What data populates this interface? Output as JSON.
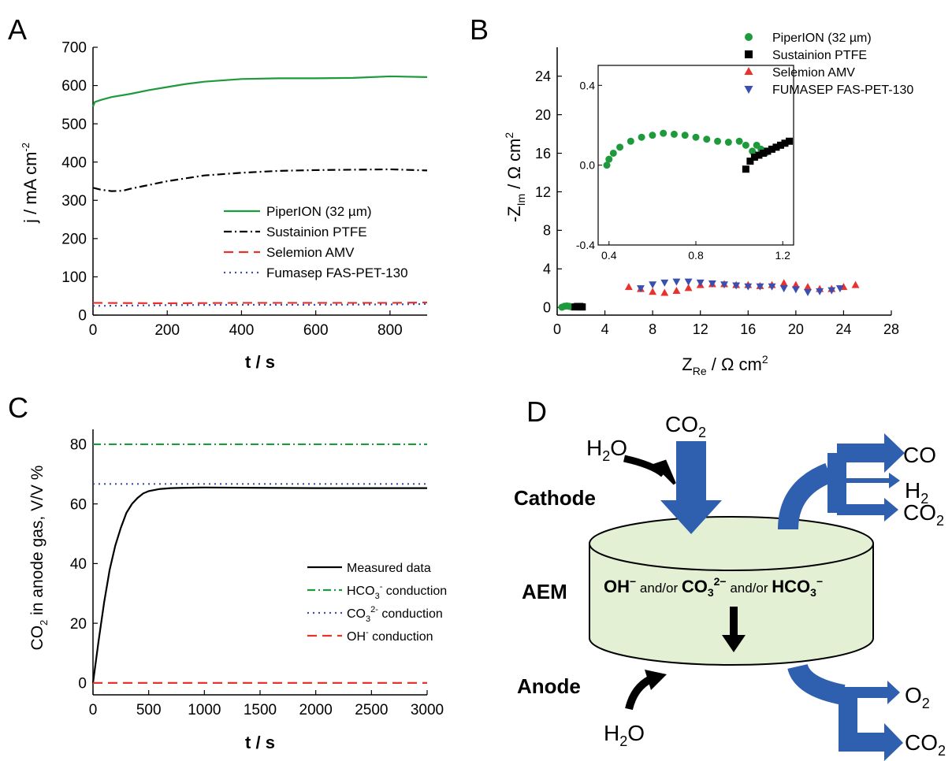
{
  "panels": {
    "A": {
      "letter": "A"
    },
    "B": {
      "letter": "B"
    },
    "C": {
      "letter": "C"
    },
    "D": {
      "letter": "D"
    }
  },
  "colors": {
    "green": "#1e9a3c",
    "black": "#000000",
    "red": "#e8322d",
    "blue": "#3a4fb0",
    "arrow": "#2f5faf",
    "disc": "#e3f0d4"
  },
  "chart_data": [
    {
      "id": "A",
      "type": "line",
      "ylabel_main": "j / mA cm",
      "ylabel_sup": "-2",
      "xlabel": "t / s",
      "xlim": [
        0,
        900
      ],
      "ylim": [
        0,
        700
      ],
      "xticks": [
        0,
        200,
        400,
        600,
        800
      ],
      "yticks": [
        0,
        100,
        200,
        300,
        400,
        500,
        600,
        700
      ],
      "legend_position": "right",
      "series": [
        {
          "name": "PiperION (32 µm)",
          "style": "solid",
          "color": "#1e9a3c",
          "x": [
            0,
            5,
            20,
            50,
            100,
            150,
            200,
            250,
            300,
            400,
            500,
            600,
            700,
            800,
            900
          ],
          "y": [
            545,
            557,
            562,
            570,
            578,
            588,
            596,
            604,
            610,
            617,
            619,
            619,
            620,
            624,
            622
          ]
        },
        {
          "name": "Sustainion PTFE",
          "style": "dashdot",
          "color": "#000000",
          "x": [
            0,
            20,
            50,
            80,
            100,
            150,
            200,
            300,
            400,
            500,
            600,
            700,
            800,
            900
          ],
          "y": [
            333,
            328,
            324,
            325,
            330,
            340,
            350,
            365,
            372,
            377,
            379,
            380,
            381,
            378
          ]
        },
        {
          "name": "Selemion AMV",
          "style": "dashed",
          "color": "#e8322d",
          "x": [
            0,
            200,
            400,
            600,
            800,
            900
          ],
          "y": [
            32,
            31,
            32,
            32,
            32,
            33
          ]
        },
        {
          "name": "Fumasep FAS-PET-130",
          "style": "dotted",
          "color": "#3a4fb0",
          "x": [
            0,
            200,
            400,
            600,
            800,
            900
          ],
          "y": [
            24,
            26,
            27,
            27,
            28,
            29
          ]
        }
      ]
    },
    {
      "id": "B",
      "type": "scatter",
      "ylabel_main": "-Z",
      "ylabel_sub": "Im",
      "ylabel_rest": " / Ω cm",
      "ylabel_sup": "2",
      "xlabel_main": "Z",
      "xlabel_sub": "Re",
      "xlabel_rest": " / Ω cm",
      "xlabel_sup": "2",
      "xlim": [
        0,
        28
      ],
      "ylim": [
        -0.8,
        27
      ],
      "xticks": [
        0,
        4,
        8,
        12,
        16,
        20,
        24,
        28
      ],
      "yticks": [
        0,
        4,
        8,
        12,
        16,
        20,
        24
      ],
      "legend_position": "top-right",
      "series": [
        {
          "name": "PiperION (32 µm)",
          "marker": "hexagon",
          "color": "#1e9a3c",
          "x": [
            0.4,
            0.6,
            0.8,
            1.0,
            1.2
          ],
          "y": [
            0.02,
            0.12,
            0.15,
            0.12,
            0.05
          ]
        },
        {
          "name": "Sustainion PTFE",
          "marker": "square",
          "color": "#000000",
          "x": [
            1.5,
            1.7,
            1.9,
            2.0,
            2.1
          ],
          "y": [
            0.05,
            0.1,
            0.1,
            0.05,
            0.05
          ]
        },
        {
          "name": "Selemion AMV",
          "marker": "triangle-up",
          "color": "#e8322d",
          "x": [
            6,
            7,
            8,
            9,
            10,
            11,
            12,
            13,
            14,
            15,
            16,
            17,
            18,
            19,
            20,
            21,
            22,
            23,
            24,
            25
          ],
          "y": [
            2.1,
            1.9,
            1.6,
            1.5,
            1.7,
            2.0,
            2.3,
            2.4,
            2.4,
            2.3,
            2.3,
            2.2,
            2.3,
            2.5,
            2.3,
            2.1,
            1.9,
            1.9,
            2.1,
            2.3
          ]
        },
        {
          "name": "FUMASEP FAS-PET-130",
          "marker": "triangle-down",
          "color": "#3a4fb0",
          "x": [
            7,
            8,
            9,
            10,
            11,
            12,
            13,
            14,
            15,
            16,
            17,
            18,
            19,
            20,
            21,
            22,
            23,
            23.7
          ],
          "y": [
            2.0,
            2.4,
            2.6,
            2.7,
            2.7,
            2.6,
            2.5,
            2.4,
            2.3,
            2.2,
            2.2,
            2.2,
            2.0,
            1.9,
            1.6,
            1.7,
            1.8,
            2.0
          ]
        }
      ],
      "inset": {
        "xlim": [
          0.35,
          1.25
        ],
        "ylim": [
          -0.4,
          0.5
        ],
        "xticks": [
          0.4,
          0.8,
          1.2
        ],
        "yticks": [
          -0.4,
          0.0,
          0.4
        ],
        "series": [
          {
            "name": "PiperION (32 µm)",
            "marker": "hexagon",
            "color": "#1e9a3c",
            "x": [
              0.39,
              0.4,
              0.42,
              0.45,
              0.5,
              0.55,
              0.6,
              0.65,
              0.7,
              0.75,
              0.8,
              0.85,
              0.9,
              0.95,
              1.0,
              1.03,
              1.06,
              1.08,
              1.1,
              1.12
            ],
            "y": [
              0.0,
              0.03,
              0.06,
              0.09,
              0.12,
              0.14,
              0.15,
              0.16,
              0.155,
              0.15,
              0.14,
              0.13,
              0.12,
              0.115,
              0.12,
              0.1,
              0.07,
              0.1,
              0.08,
              0.06
            ]
          },
          {
            "name": "Sustainion PTFE",
            "marker": "square",
            "color": "#000000",
            "x": [
              1.03,
              1.05,
              1.07,
              1.09,
              1.11,
              1.13,
              1.15,
              1.17,
              1.19,
              1.21,
              1.23
            ],
            "y": [
              -0.02,
              0.02,
              0.04,
              0.05,
              0.06,
              0.07,
              0.08,
              0.09,
              0.1,
              0.11,
              0.12
            ]
          }
        ]
      }
    },
    {
      "id": "C",
      "type": "line",
      "ylabel_main": "CO",
      "ylabel_sub": "2",
      "ylabel_rest": " in anode gas, V/V %",
      "xlabel": "t / s",
      "xlim": [
        0,
        3000
      ],
      "ylim": [
        -4,
        85
      ],
      "xticks": [
        0,
        500,
        1000,
        1500,
        2000,
        2500,
        3000
      ],
      "yticks": [
        0,
        20,
        40,
        60,
        80
      ],
      "legend_position": "bottom-right",
      "series": [
        {
          "name": "Measured data",
          "style": "solid",
          "color": "#000000",
          "x": [
            0,
            50,
            100,
            150,
            200,
            250,
            300,
            350,
            400,
            450,
            500,
            600,
            700,
            800,
            1000,
            1500,
            2000,
            2500,
            3000
          ],
          "y": [
            0,
            14,
            27,
            38,
            46,
            52,
            57,
            60,
            62,
            63.5,
            64.3,
            65,
            65.3,
            65.4,
            65.5,
            65.4,
            65.3,
            65.3,
            65.3
          ]
        },
        {
          "name": "HCO",
          "sub": "3",
          "sup": "-",
          "rest": " conduction",
          "style": "dashdot",
          "color": "#1e9a3c",
          "x": [
            0,
            3000
          ],
          "y": [
            80,
            80
          ]
        },
        {
          "name": "CO",
          "sub": "3",
          "sup": "2-",
          "rest": " conduction",
          "style": "dotted",
          "color": "#3a4fb0",
          "x": [
            0,
            3000
          ],
          "y": [
            66.7,
            66.7
          ]
        },
        {
          "name": "OH",
          "sub": "",
          "sup": "-",
          "rest": " conduction",
          "style": "dashed",
          "color": "#e8322d",
          "x": [
            0,
            3000
          ],
          "y": [
            0,
            0
          ]
        }
      ]
    }
  ],
  "diagram": {
    "cathode_label": "Cathode",
    "aem_label": "AEM",
    "anode_label": "Anode",
    "h2o_top": "H",
    "h2o_top_sub": "2",
    "h2o_top_rest": "O",
    "co2_top": "CO",
    "co2_top_sub": "2",
    "out_co": "CO",
    "out_h2": "H",
    "out_h2_sub": "2",
    "out_co2": "CO",
    "out_co2_sub": "2",
    "h2o_bottom": "H",
    "h2o_bottom_sub": "2",
    "h2o_bottom_rest": "O",
    "out_o2": "O",
    "out_o2_sub": "2",
    "out_co2_b": "CO",
    "out_co2_b_sub": "2",
    "ion_oh": "OH",
    "ion_oh_sup": "−",
    "andor1": " and/or ",
    "ion_co3": "CO",
    "ion_co3_sub": "3",
    "ion_co3_sup": "2−",
    "andor2": " and/or ",
    "ion_hco3": "HCO",
    "ion_hco3_sub": "3",
    "ion_hco3_sup": "−"
  }
}
